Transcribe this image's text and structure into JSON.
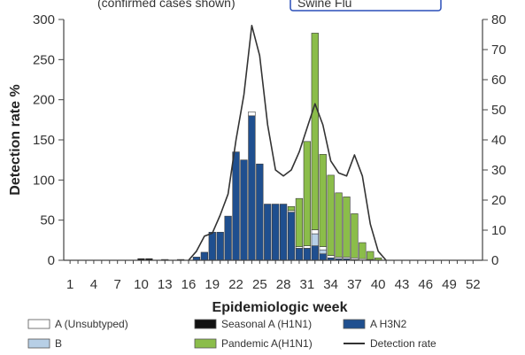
{
  "header": {
    "caption_fragment": "(confirmed cases shown)",
    "link_fragment": "Swine Flu"
  },
  "chart_data": {
    "type": "bar",
    "xlabel": "Epidemiologic week",
    "ylabel": "Detection rate %",
    "ylim": [
      0,
      300
    ],
    "y2lim": [
      0,
      80
    ],
    "yticks": [
      0,
      50,
      100,
      150,
      200,
      250,
      300
    ],
    "y2ticks": [
      0,
      10,
      20,
      30,
      40,
      50,
      60,
      70,
      80
    ],
    "xtick_labels": [
      "1",
      "4",
      "7",
      "10",
      "13",
      "16",
      "19",
      "22",
      "25",
      "28",
      "31",
      "34",
      "37",
      "40",
      "43",
      "46",
      "49",
      "52"
    ],
    "weeks": [
      10,
      11,
      13,
      15,
      17,
      18,
      19,
      20,
      21,
      22,
      23,
      24,
      25,
      26,
      27,
      28,
      29,
      30,
      31,
      32,
      33,
      34,
      35,
      36,
      37,
      38,
      39,
      40
    ],
    "series": [
      {
        "name": "A (Unsubtyped)",
        "color": "#ffffff",
        "values": [
          0,
          0,
          0,
          0,
          0,
          0,
          0,
          0,
          0,
          0,
          0,
          5,
          0,
          0,
          0,
          0,
          2,
          2,
          3,
          5,
          4,
          3,
          2,
          2,
          2,
          2,
          1,
          0
        ]
      },
      {
        "name": "B",
        "color": "#b7cfe6",
        "values": [
          0,
          0,
          0,
          0,
          0,
          0,
          0,
          0,
          0,
          0,
          0,
          0,
          0,
          0,
          0,
          0,
          0,
          0,
          0,
          15,
          5,
          0,
          0,
          0,
          0,
          0,
          0,
          0
        ]
      },
      {
        "name": "Seasonal A (H1N1)",
        "color": "#111111",
        "values": [
          2,
          2,
          1,
          1,
          0,
          0,
          0,
          0,
          0,
          0,
          0,
          0,
          0,
          0,
          0,
          0,
          0,
          0,
          0,
          0,
          0,
          0,
          0,
          0,
          0,
          0,
          0,
          0
        ]
      },
      {
        "name": "A H3N2",
        "color": "#1f4f8f",
        "values": [
          0,
          0,
          0,
          0,
          4,
          10,
          35,
          35,
          55,
          135,
          125,
          180,
          120,
          70,
          70,
          70,
          60,
          15,
          15,
          18,
          8,
          3,
          2,
          2,
          1,
          0,
          0,
          0
        ]
      },
      {
        "name": "Pandemic A(H1N1)",
        "color": "#8bbd4a",
        "values": [
          0,
          0,
          0,
          0,
          0,
          0,
          0,
          0,
          0,
          0,
          0,
          0,
          0,
          0,
          0,
          0,
          5,
          60,
          130,
          245,
          115,
          100,
          80,
          75,
          55,
          20,
          10,
          3
        ]
      }
    ],
    "detection_rate": {
      "name": "Detection rate",
      "weeks": [
        16,
        17,
        18,
        19,
        20,
        21,
        22,
        23,
        24,
        25,
        26,
        27,
        28,
        29,
        30,
        31,
        32,
        33,
        34,
        35,
        36,
        37,
        38,
        39,
        40,
        41
      ],
      "values": [
        0,
        3,
        8,
        9,
        15,
        22,
        40,
        55,
        78,
        68,
        45,
        30,
        28,
        30,
        36,
        44,
        52,
        45,
        33,
        29,
        28,
        35,
        28,
        12,
        3,
        0
      ]
    },
    "legend": [
      {
        "name": "A (Unsubtyped)",
        "color": "#ffffff",
        "kind": "box"
      },
      {
        "name": "Seasonal A (H1N1)",
        "color": "#111111",
        "kind": "box"
      },
      {
        "name": "A H3N2",
        "color": "#1f4f8f",
        "kind": "box"
      },
      {
        "name": "B",
        "color": "#b7cfe6",
        "kind": "box"
      },
      {
        "name": "Pandemic A(H1N1)",
        "color": "#8bbd4a",
        "kind": "box"
      },
      {
        "name": "Detection rate",
        "color": "#333333",
        "kind": "line"
      }
    ]
  }
}
